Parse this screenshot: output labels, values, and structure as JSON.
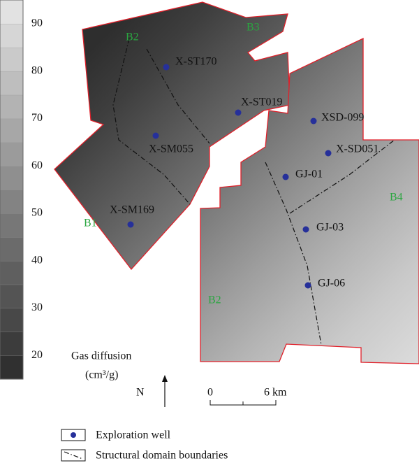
{
  "colorbar": {
    "title": "Gas diffusion",
    "unit": "(cm³/g)",
    "range": [
      15,
      95
    ],
    "ticks": [
      90,
      80,
      70,
      60,
      50,
      40,
      30,
      20
    ]
  },
  "north": "N",
  "scale_bar": {
    "start": "0",
    "end": "6 km"
  },
  "domains": [
    "B1",
    "B2",
    "B3",
    "B4",
    "B2"
  ],
  "wells": [
    "X-ST170",
    "X-ST019",
    "XSD-099",
    "X-SM055",
    "X-SD051",
    "GJ-01",
    "X-SM169",
    "GJ-03",
    "GJ-06"
  ],
  "legend": {
    "well": "Exploration well",
    "boundary": "Structural domain boundaries"
  }
}
